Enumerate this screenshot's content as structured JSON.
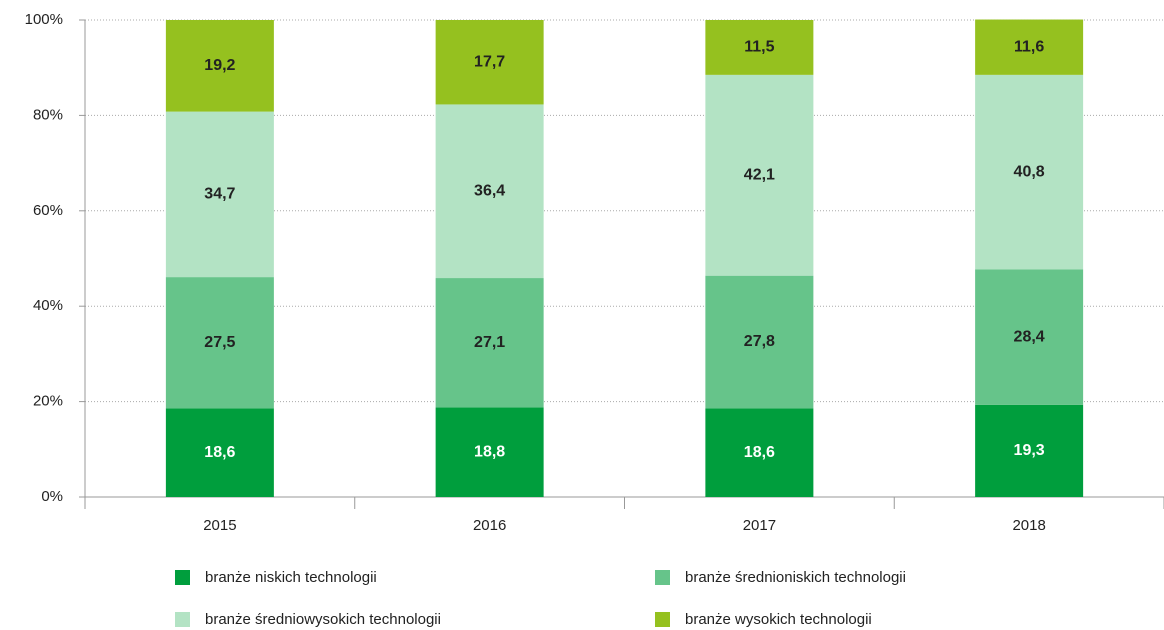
{
  "chart_data": {
    "type": "stacked_bar",
    "categories": [
      "2015",
      "2016",
      "2017",
      "2018"
    ],
    "series": [
      {
        "name": "branże niskich technologii",
        "color": "#009e3d",
        "values": [
          18.6,
          18.8,
          18.6,
          19.3
        ],
        "value_labels": [
          "18,6",
          "18,8",
          "18,6",
          "19,3"
        ]
      },
      {
        "name": "branże średnioniskich technologii",
        "color": "#66c48a",
        "values": [
          27.5,
          27.1,
          27.8,
          28.4
        ],
        "value_labels": [
          "27,5",
          "27,1",
          "27,8",
          "28,4"
        ]
      },
      {
        "name": "branże średniowysokich technologii",
        "color": "#b3e3c4",
        "values": [
          34.7,
          36.4,
          42.1,
          40.8
        ],
        "value_labels": [
          "34,7",
          "36,4",
          "42,1",
          "40,8"
        ]
      },
      {
        "name": "branże wysokich technologii",
        "color": "#95c11f",
        "values": [
          19.2,
          17.7,
          11.5,
          11.6
        ],
        "value_labels": [
          "19,2",
          "17,7",
          "11,5",
          "11,6"
        ]
      }
    ],
    "ylim": [
      0,
      100
    ],
    "yticks": [
      {
        "value": 0,
        "label": "0%"
      },
      {
        "value": 20,
        "label": "20%"
      },
      {
        "value": 40,
        "label": "40%"
      },
      {
        "value": 60,
        "label": "60%"
      },
      {
        "value": 80,
        "label": "80%"
      },
      {
        "value": 100,
        "label": "100%"
      }
    ],
    "grid": true,
    "legend": "bottom"
  }
}
